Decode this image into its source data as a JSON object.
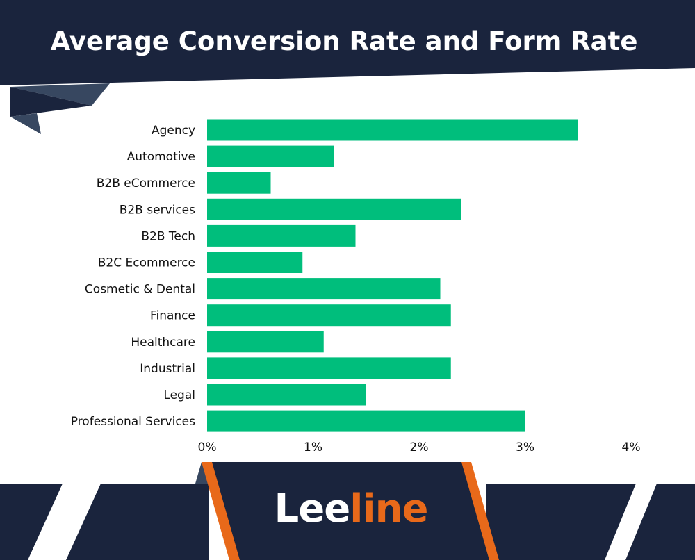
{
  "colors": {
    "navy": "#1a243d",
    "slate": "#374760",
    "bar": "#00be7c",
    "orange": "#e8691a"
  },
  "logo": {
    "part1": "Lee",
    "part2": "line"
  },
  "chart_data": {
    "type": "bar",
    "orientation": "horizontal",
    "title": "Average Conversion Rate and Form Rate",
    "categories": [
      "Agency",
      "Automotive",
      "B2B eCommerce",
      "B2B services",
      "B2B Tech",
      "B2C Ecommerce",
      "Cosmetic & Dental",
      "Finance",
      "Healthcare",
      "Industrial",
      "Legal",
      "Professional Services"
    ],
    "values": [
      3.5,
      1.2,
      0.6,
      2.4,
      1.4,
      0.9,
      2.2,
      2.3,
      1.1,
      2.3,
      1.5,
      3.0
    ],
    "unit": "%",
    "xlim": [
      0,
      4
    ],
    "xticks": [
      "0%",
      "1%",
      "2%",
      "3%",
      "4%"
    ],
    "grid": false,
    "xlabel": "",
    "ylabel": ""
  }
}
